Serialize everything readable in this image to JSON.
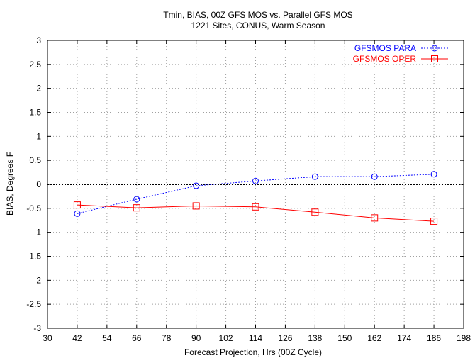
{
  "chart_data": {
    "type": "line",
    "title": "Tmin, BIAS, 00Z GFS MOS vs. Parallel GFS MOS",
    "subtitle": "1221 Sites, CONUS, Warm Season",
    "xlabel": "Forecast Projection, Hrs (00Z Cycle)",
    "ylabel": "BIAS, Degrees F",
    "xlim": [
      30,
      198
    ],
    "ylim": [
      -3,
      3
    ],
    "x_ticks": [
      30,
      42,
      54,
      66,
      78,
      90,
      102,
      114,
      126,
      138,
      150,
      162,
      174,
      186,
      198
    ],
    "y_ticks": [
      -3,
      -2.5,
      -2,
      -1.5,
      -1,
      -0.5,
      0,
      0.5,
      1,
      1.5,
      2,
      2.5,
      3
    ],
    "x_tick_labels": [
      "30",
      "42",
      "54",
      "66",
      "78",
      "90",
      "102",
      "114",
      "126",
      "138",
      "150",
      "162",
      "174",
      "186",
      "198"
    ],
    "y_tick_labels": [
      "-3",
      "-2.5",
      "-2",
      "-1.5",
      "-1",
      "-0.5",
      "0",
      "0.5",
      "1",
      "1.5",
      "2",
      "2.5",
      "3"
    ],
    "grid": true,
    "zero_line": true,
    "legend_position": "top-right",
    "x": [
      42,
      66,
      90,
      114,
      138,
      162,
      186
    ],
    "series": [
      {
        "name": "GFSMOS PARA",
        "color": "#0000ff",
        "line_style": "dotted",
        "marker": "circle",
        "values": [
          -0.61,
          -0.31,
          -0.03,
          0.07,
          0.16,
          0.16,
          0.21
        ]
      },
      {
        "name": "GFSMOS OPER",
        "color": "#ff0000",
        "line_style": "solid",
        "marker": "square",
        "values": [
          -0.43,
          -0.49,
          -0.45,
          -0.47,
          -0.58,
          -0.7,
          -0.77
        ]
      }
    ]
  }
}
